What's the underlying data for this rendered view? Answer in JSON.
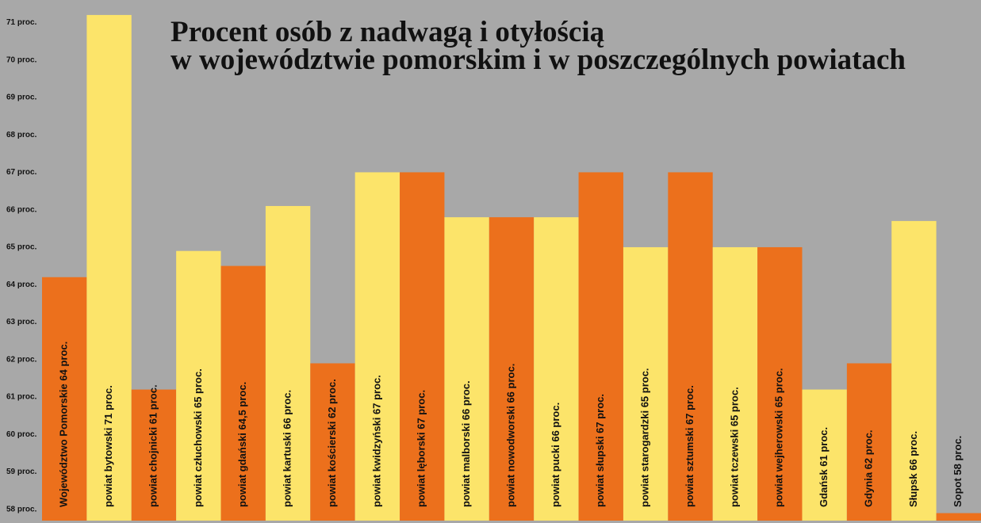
{
  "chart_data": {
    "type": "bar",
    "title": [
      "Procent osób z nadwagą i otyłością",
      "w województwie pomorskim i w poszczególnych powiatach"
    ],
    "categories": [
      "Województwo Pomorskie 64 proc.",
      "powiat bytowski 71 proc.",
      "powiat chojnicki 61 proc.",
      "powiat człuchowski 65 proc.",
      "powiat gdański 64,5 proc.",
      "powiat kartuski 66 proc.",
      "powiat kościerski 62 proc.",
      "powiat kwidzyński 67 proc.",
      "powiat lęborski 67 proc.",
      "powiat malborski 66 proc.",
      "powiat nowodworski 66 proc.",
      "powiat pucki 66 proc.",
      "powiat słupski 67 proc.",
      "powiat starogardzki 65 proc.",
      "powiat sztumski 67 proc.",
      "powiat tczewski 65 proc.",
      "powiat wejherowski 65 proc.",
      "Gdańsk 61 proc.",
      "Gdynia 62 proc.",
      "Słupsk  66 proc.",
      "Sopot 58 proc."
    ],
    "values": [
      64.2,
      71.2,
      61.2,
      64.9,
      64.5,
      66.1,
      61.9,
      67,
      67,
      65.8,
      65.8,
      65.8,
      67,
      65,
      67,
      65,
      65,
      61.2,
      61.9,
      65.7,
      57.9
    ],
    "colors": [
      "#ec701c",
      "#fce46a",
      "#ec701c",
      "#fce46a",
      "#ec701c",
      "#fce46a",
      "#ec701c",
      "#fce46a",
      "#ec701c",
      "#fce46a",
      "#ec701c",
      "#fce46a",
      "#ec701c",
      "#fce46a",
      "#ec701c",
      "#fce46a",
      "#ec701c",
      "#fce46a",
      "#ec701c",
      "#fce46a",
      "#ec701c"
    ],
    "ylim": [
      57.7,
      71.6
    ],
    "yticks": [
      {
        "value": 58,
        "label": "58 proc."
      },
      {
        "value": 59,
        "label": "59 proc."
      },
      {
        "value": 60,
        "label": "60 proc."
      },
      {
        "value": 61,
        "label": "61 proc."
      },
      {
        "value": 62,
        "label": "62 proc."
      },
      {
        "value": 63,
        "label": "63 proc."
      },
      {
        "value": 64,
        "label": "64 proc."
      },
      {
        "value": 65,
        "label": "65 proc."
      },
      {
        "value": 66,
        "label": "66 proc."
      },
      {
        "value": 67,
        "label": "67 proc."
      },
      {
        "value": 68,
        "label": "68 proc."
      },
      {
        "value": 69,
        "label": "69 proc."
      },
      {
        "value": 70,
        "label": "70 proc."
      },
      {
        "value": 71,
        "label": "71 proc."
      }
    ]
  }
}
